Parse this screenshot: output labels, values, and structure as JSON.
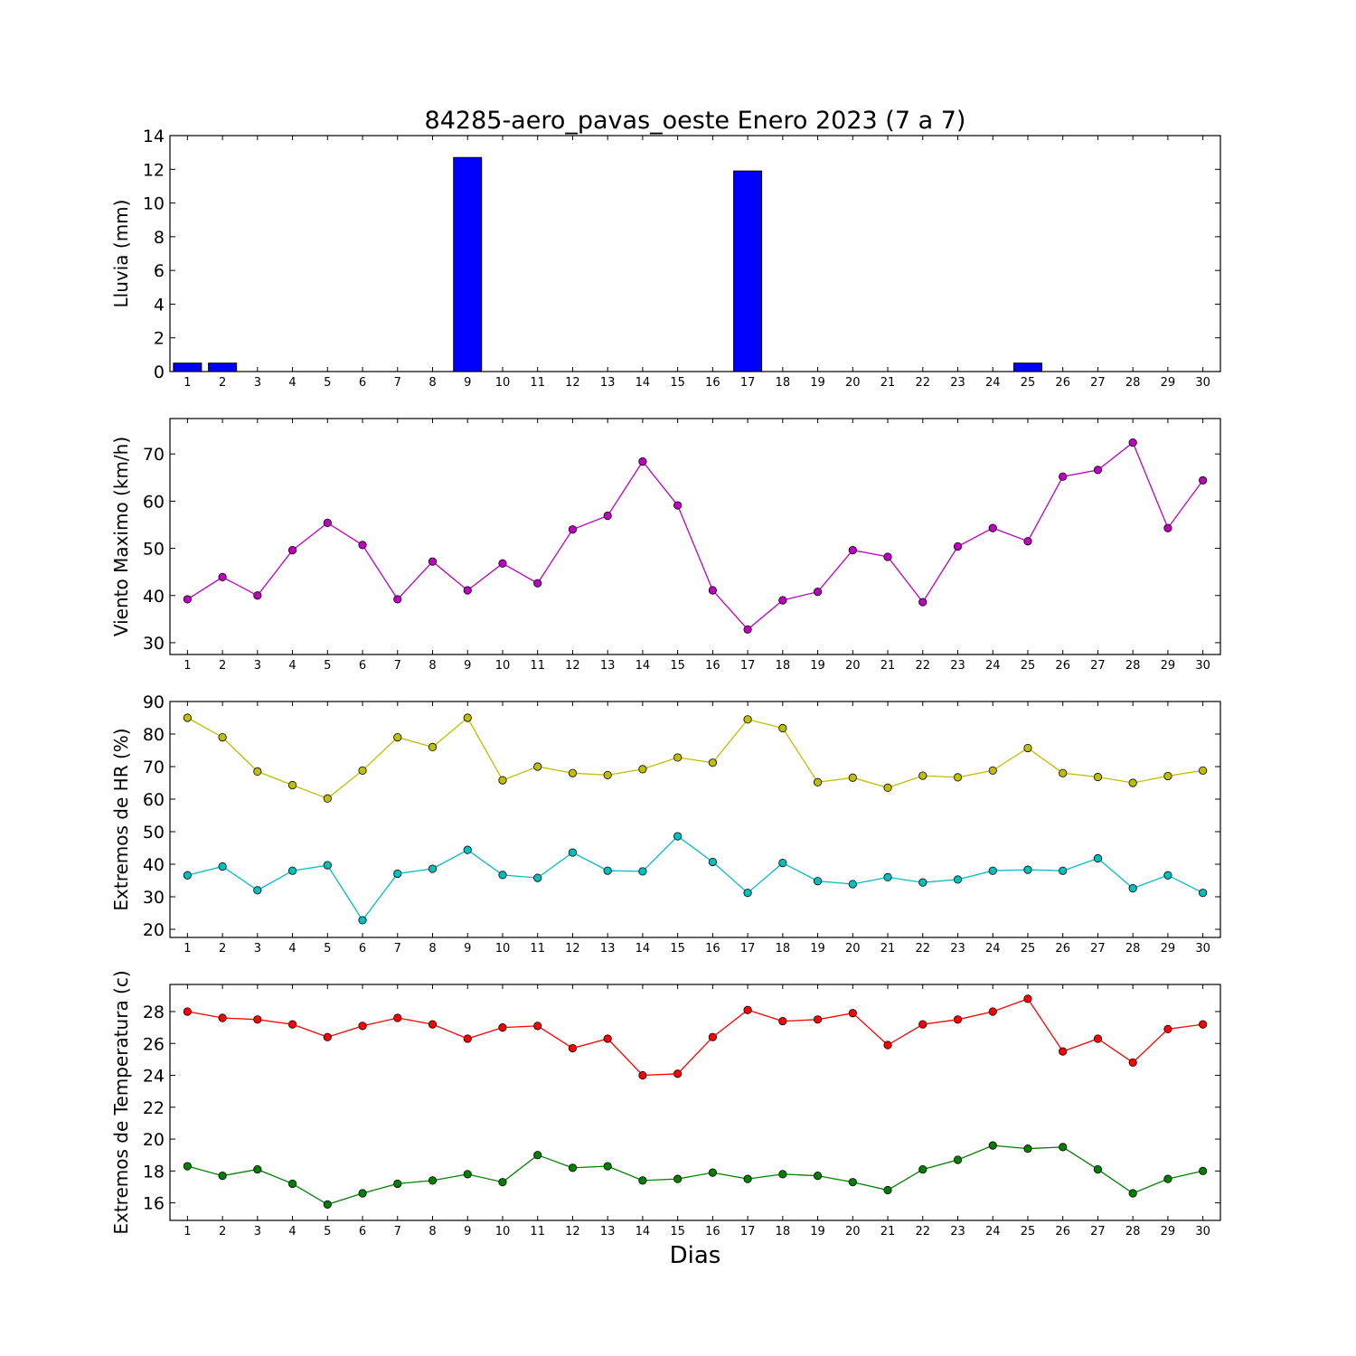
{
  "figure": {
    "title": "84285-aero_pavas_oeste Enero 2023  (7 a 7)",
    "xlabel": "Dias"
  },
  "chart_data": [
    {
      "type": "bar",
      "ylabel": "Lluvia (mm)",
      "ylim": [
        0,
        14
      ],
      "yticks": [
        0,
        2,
        4,
        6,
        8,
        10,
        12,
        14
      ],
      "x": [
        1,
        2,
        3,
        4,
        5,
        6,
        7,
        8,
        9,
        10,
        11,
        12,
        13,
        14,
        15,
        16,
        17,
        18,
        19,
        20,
        21,
        22,
        23,
        24,
        25,
        26,
        27,
        28,
        29,
        30
      ],
      "series": [
        {
          "color": "#0000ff",
          "values": [
            0.5,
            0.5,
            0,
            0,
            0,
            0,
            0,
            0,
            12.7,
            0,
            0,
            0,
            0,
            0,
            0,
            0,
            11.9,
            0,
            0,
            0,
            0,
            0,
            0,
            0,
            0.5,
            0,
            0,
            0,
            0,
            0
          ]
        }
      ],
      "grid": false
    },
    {
      "type": "line",
      "ylabel": "Viento Maximo (km/h)",
      "ylim": [
        27.5,
        77.5
      ],
      "yticks": [
        30,
        40,
        50,
        60,
        70
      ],
      "x": [
        1,
        2,
        3,
        4,
        5,
        6,
        7,
        8,
        9,
        10,
        11,
        12,
        13,
        14,
        15,
        16,
        17,
        18,
        19,
        20,
        21,
        22,
        23,
        24,
        25,
        26,
        27,
        28,
        29,
        30
      ],
      "series": [
        {
          "color": "#bf00bf",
          "values": [
            39.2,
            43.9,
            40.0,
            49.6,
            55.4,
            50.7,
            39.2,
            47.2,
            41.1,
            46.8,
            42.6,
            54.0,
            56.9,
            68.4,
            59.1,
            41.1,
            32.8,
            39.0,
            40.8,
            49.6,
            48.2,
            38.6,
            50.4,
            54.3,
            51.5,
            65.2,
            66.6,
            72.4,
            54.3,
            64.4
          ]
        }
      ],
      "grid": false
    },
    {
      "type": "line",
      "ylabel": "Extremos de HR (%)",
      "ylim": [
        17.5,
        90
      ],
      "yticks": [
        20,
        30,
        40,
        50,
        60,
        70,
        80,
        90
      ],
      "x": [
        1,
        2,
        3,
        4,
        5,
        6,
        7,
        8,
        9,
        10,
        11,
        12,
        13,
        14,
        15,
        16,
        17,
        18,
        19,
        20,
        21,
        22,
        23,
        24,
        25,
        26,
        27,
        28,
        29,
        30
      ],
      "series": [
        {
          "color": "#bfbf00",
          "values": [
            85,
            79,
            68.5,
            64.3,
            60.2,
            68.8,
            79,
            76,
            85,
            65.8,
            70,
            68,
            67.4,
            69.2,
            72.8,
            71.2,
            84.5,
            81.8,
            65.2,
            66.6,
            63.5,
            67.2,
            66.7,
            68.8,
            75.7,
            68,
            66.8,
            65,
            67.1,
            68.8
          ]
        },
        {
          "color": "#00bfbf",
          "values": [
            36.6,
            39.3,
            32.0,
            38.0,
            39.7,
            22.8,
            37.1,
            38.6,
            44.4,
            36.7,
            35.8,
            43.6,
            38.0,
            37.8,
            48.6,
            40.7,
            31.2,
            40.4,
            34.8,
            33.9,
            36.0,
            34.4,
            35.3,
            38.0,
            38.3,
            38.0,
            41.8,
            32.6,
            36.6,
            31.2
          ]
        }
      ],
      "grid": false
    },
    {
      "type": "line",
      "ylabel": "Extremos de Temperatura (c)",
      "ylim": [
        14.9,
        29.7
      ],
      "yticks": [
        16,
        18,
        20,
        22,
        24,
        26,
        28
      ],
      "x": [
        1,
        2,
        3,
        4,
        5,
        6,
        7,
        8,
        9,
        10,
        11,
        12,
        13,
        14,
        15,
        16,
        17,
        18,
        19,
        20,
        21,
        22,
        23,
        24,
        25,
        26,
        27,
        28,
        29,
        30
      ],
      "series": [
        {
          "color": "#ff0000",
          "values": [
            28,
            27.6,
            27.5,
            27.2,
            26.4,
            27.1,
            27.6,
            27.2,
            26.3,
            27,
            27.1,
            25.7,
            26.3,
            24,
            24.1,
            26.4,
            28.1,
            27.4,
            27.5,
            27.9,
            25.9,
            27.2,
            27.5,
            28,
            28.8,
            25.5,
            26.3,
            24.8,
            26.9,
            27.2
          ]
        },
        {
          "color": "#008000",
          "values": [
            18.3,
            17.7,
            18.1,
            17.2,
            15.9,
            16.6,
            17.2,
            17.4,
            17.8,
            17.3,
            19,
            18.2,
            18.3,
            17.4,
            17.5,
            17.9,
            17.5,
            17.8,
            17.7,
            17.3,
            16.8,
            18.1,
            18.7,
            19.6,
            19.4,
            19.5,
            18.1,
            16.6,
            17.5,
            18
          ]
        }
      ],
      "grid": false
    }
  ]
}
